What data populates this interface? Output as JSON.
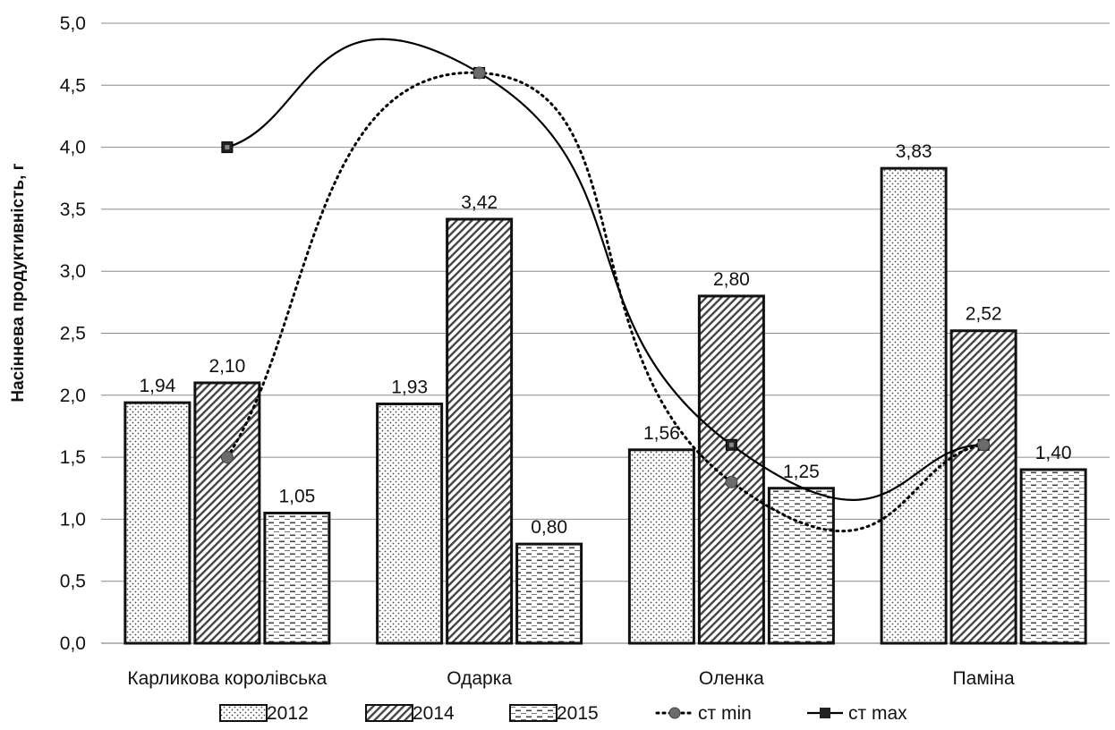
{
  "chart_data": {
    "type": "bar",
    "ylabel": "Насіннева продуктивність, г",
    "xlabel": "",
    "ylim": [
      0,
      5
    ],
    "y_tick_step": 0.5,
    "y_tick_labels": [
      "0,0",
      "0,5",
      "1,0",
      "1,5",
      "2,0",
      "2,5",
      "3,0",
      "3,5",
      "4,0",
      "4,5",
      "5,0"
    ],
    "grid": true,
    "legend_position": "bottom",
    "categories": [
      "Карликова королівська",
      "Одарка",
      "Оленка",
      "Паміна"
    ],
    "series": [
      {
        "name": "2012",
        "kind": "bar",
        "pattern": "dots",
        "values": [
          1.94,
          1.93,
          1.56,
          3.83
        ],
        "labels": [
          "1,94",
          "1,93",
          "1,56",
          "3,83"
        ]
      },
      {
        "name": "2014",
        "kind": "bar",
        "pattern": "diagonal",
        "values": [
          2.1,
          3.42,
          2.8,
          2.52
        ],
        "labels": [
          "2,10",
          "3,42",
          "2,80",
          "2,52"
        ]
      },
      {
        "name": "2015",
        "kind": "bar",
        "pattern": "dashes",
        "values": [
          1.05,
          0.8,
          1.25,
          1.4
        ],
        "labels": [
          "1,05",
          "0,80",
          "1,25",
          "1,40"
        ]
      },
      {
        "name": "ст min",
        "kind": "line",
        "style": "dotted",
        "marker": "circle",
        "values": [
          1.5,
          4.6,
          1.3,
          1.6
        ]
      },
      {
        "name": "ст max",
        "kind": "line",
        "style": "solid",
        "marker": "square",
        "values": [
          4.0,
          4.6,
          1.6,
          1.6
        ]
      }
    ]
  }
}
